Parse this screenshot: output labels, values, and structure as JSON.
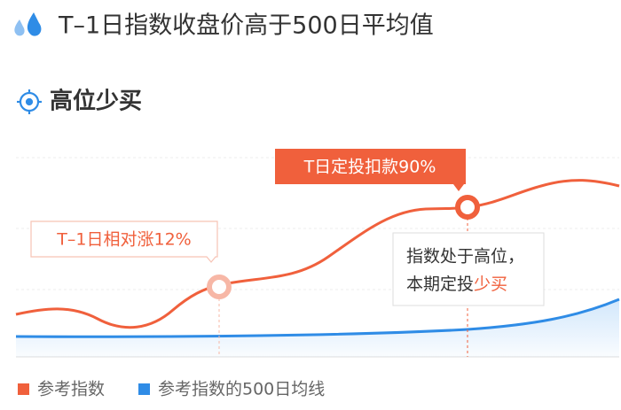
{
  "header": {
    "title": "T–1日指数收盘价高于500日平均值"
  },
  "section": {
    "title": "高位少买"
  },
  "annotations": {
    "rise": "T–1日相对涨12%",
    "deduct": "T日定投扣款90%",
    "note_line1": "指数处于高位，",
    "note_line2": "本期定投",
    "note_highlight": "少买"
  },
  "legend": [
    "参考指数",
    "参考指数的500日均线"
  ]
}
